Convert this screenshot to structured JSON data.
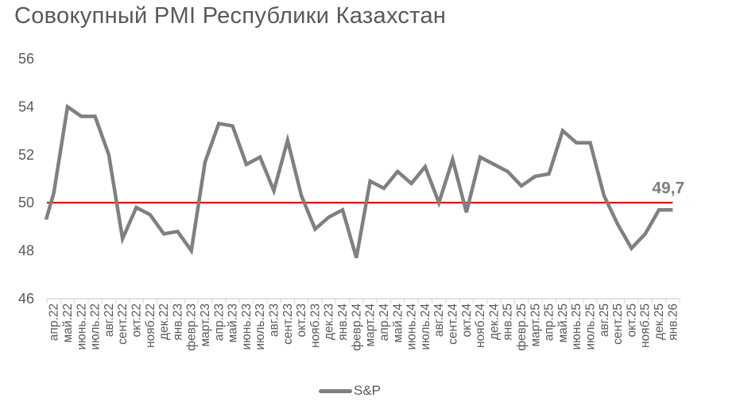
{
  "chart_data": {
    "type": "line",
    "title": "Совокупный PMI Республики Казахстан",
    "xlabel": "",
    "ylabel": "",
    "ylim": [
      46,
      56
    ],
    "yticks": [
      46,
      48,
      50,
      52,
      54,
      56
    ],
    "grid": false,
    "legend_position": "bottom",
    "categories": [
      "апр.22",
      "май.22",
      "июнь.22",
      "июль.22",
      "авг.22",
      "сент.22",
      "окт.22",
      "нояб.22",
      "дек.22",
      "янв.23",
      "февр.23",
      "март.23",
      "апр.23",
      "май.23",
      "июнь.23",
      "июль.23",
      "авг.23",
      "сент.23",
      "окт.23",
      "нояб.23",
      "дек.23",
      "янв.24",
      "февр.24",
      "март.24",
      "апр.24",
      "май.24",
      "июнь.24",
      "июль.24",
      "авг.24",
      "сент.24",
      "окт.24",
      "нояб.24",
      "дек.24",
      "янв.25",
      "февр.25",
      "март.25",
      "апр.25",
      "май.25",
      "июнь.25",
      "июль.25",
      "авг.25",
      "сент.25",
      "окт.25",
      "нояб.25",
      "дек.25",
      "янв.26"
    ],
    "series": [
      {
        "name": "S&P",
        "color": "#808080",
        "clipped_start_value": 49.3,
        "values": [
          50.4,
          54.0,
          53.6,
          53.6,
          52.0,
          48.5,
          49.8,
          49.5,
          48.7,
          48.8,
          48.0,
          51.7,
          53.3,
          53.2,
          51.6,
          51.9,
          50.5,
          52.6,
          50.3,
          48.9,
          49.4,
          49.7,
          47.7,
          50.9,
          50.6,
          51.3,
          50.8,
          51.5,
          50.0,
          51.8,
          49.6,
          51.9,
          51.6,
          51.3,
          50.7,
          51.1,
          51.2,
          53.0,
          52.5,
          52.5,
          50.3,
          49.1,
          48.1,
          48.7,
          49.7,
          49.7
        ]
      }
    ],
    "reference_line": {
      "value": 50,
      "color": "#e00000"
    },
    "annotations": [
      {
        "text": "49,7",
        "category": "янв.26",
        "value": 49.7
      }
    ]
  },
  "header": {
    "title": "Совокупный PMI Республики Казахстан"
  },
  "legend": {
    "items": [
      {
        "label": "S&P",
        "color": "#808080"
      }
    ]
  }
}
